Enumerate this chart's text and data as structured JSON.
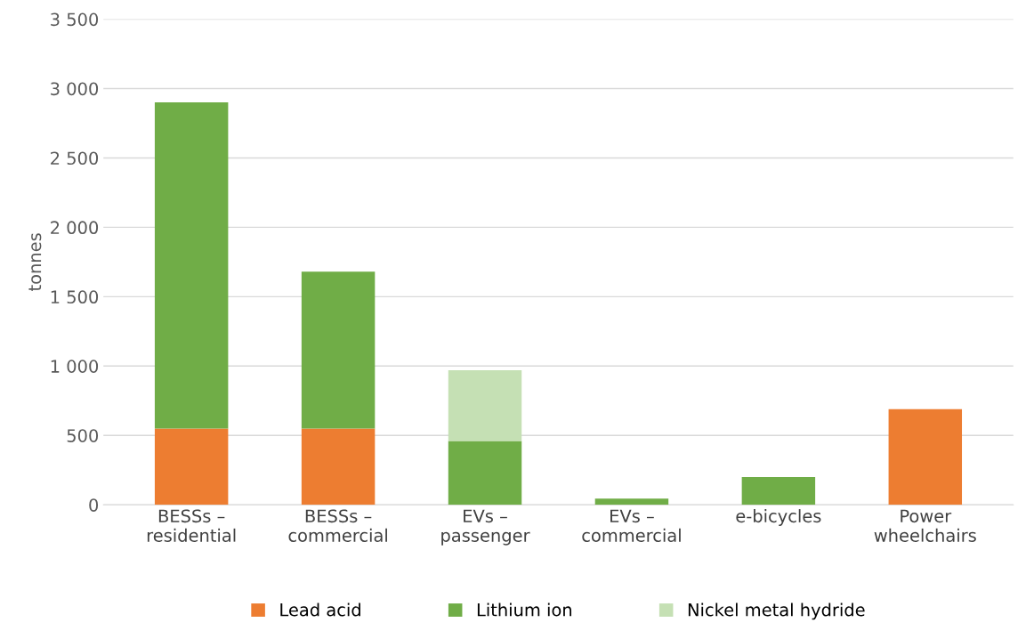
{
  "chart_data": {
    "type": "bar",
    "stacked": true,
    "ylabel": "tonnes",
    "categories": [
      "BESSs –\nresidential",
      "BESSs –\ncommercial",
      "EVs –\npassenger",
      "EVs –\ncommercial",
      "e-bicycles",
      "Power\nwheelchairs"
    ],
    "series": [
      {
        "name": "Lead acid",
        "color": "#ed7d31",
        "values": [
          550,
          550,
          0,
          0,
          0,
          690
        ]
      },
      {
        "name": "Lithium ion",
        "color": "#70ad47",
        "values": [
          2350,
          1130,
          460,
          45,
          200,
          0
        ]
      },
      {
        "name": "Nickel metal hydride",
        "color": "#c5e0b4",
        "values": [
          0,
          0,
          510,
          0,
          0,
          0
        ]
      }
    ],
    "ylim": [
      0,
      3500
    ],
    "yticks": [
      0,
      500,
      {
        "value": 1000,
        "label": "1 000"
      },
      {
        "value": 1500,
        "label": "1 500"
      },
      {
        "value": 2000,
        "label": "2 000"
      },
      {
        "value": 2500,
        "label": "2 500"
      },
      {
        "value": 3000,
        "label": "3 000"
      },
      {
        "value": 3500,
        "label": "3 500"
      }
    ],
    "grid": "y",
    "legend": "bottom"
  }
}
